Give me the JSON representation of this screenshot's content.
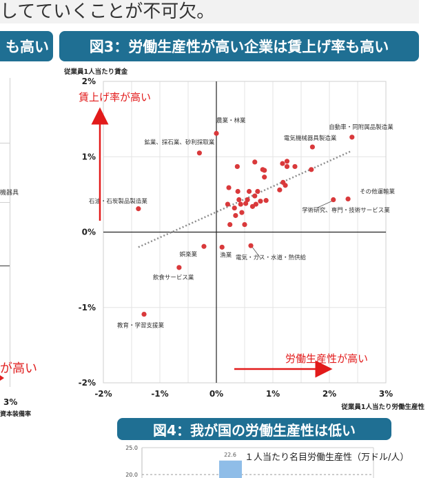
{
  "header": {
    "top_text": "してていくことが不可欠。"
  },
  "left_panel": {
    "banner_fragment": "も高い",
    "label_fragment": "機器具",
    "red_fragment": "が高い",
    "tick_fragment": "3%",
    "axis_fragment": "資本装備率"
  },
  "fig3": {
    "banner": "図3：労働生産性が高い企業は賃上げ率も高い",
    "annotation_y": "賃上げ率が高い",
    "annotation_x": "労働生産性が高い"
  },
  "fig4": {
    "banner": "図4：我が国の労働生産性は低い",
    "legend": "１人当たり名目労働生産性（万ドル/人）",
    "y_ticks": [
      "25.0",
      "20.0"
    ],
    "bar_label": "22.6",
    "bar_value": 22.6,
    "bar_color": "#8fbde8"
  },
  "chart_data": {
    "type": "scatter",
    "ylabel": "従業員1人当たり賃金",
    "xlabel": "従業員1人当たり労働生産性",
    "xlim": [
      -0.02,
      0.03
    ],
    "ylim": [
      -0.02,
      0.02
    ],
    "x_ticks": [
      -0.02,
      -0.01,
      0,
      0.01,
      0.02,
      0.03
    ],
    "x_tick_labels": [
      "-2%",
      "-1%",
      "0%",
      "1%",
      "2%",
      "3%"
    ],
    "y_ticks": [
      -0.02,
      -0.01,
      0,
      0.01,
      0.02
    ],
    "y_tick_labels": [
      "-2%",
      "-1%",
      "0%",
      "1%",
      "2%"
    ],
    "grid": true,
    "point_color": "#d9393b",
    "trend_color": "#8c8c8c",
    "trendline": [
      [
        -0.0138,
        -0.002
      ],
      [
        0.024,
        0.0108
      ]
    ],
    "labeled_points": [
      {
        "label": "農業・林業",
        "x": 0.0,
        "y": 0.0131
      },
      {
        "label": "鉱業、採石業、砂利採取業",
        "x": -0.003,
        "y": 0.0105
      },
      {
        "label": "自動車・同附属品製造業",
        "x": 0.024,
        "y": 0.0126
      },
      {
        "label": "電気機械器具製造業",
        "x": 0.017,
        "y": 0.0113
      },
      {
        "label": "石油・石炭製品製造業",
        "x": -0.0138,
        "y": 0.0031
      },
      {
        "label": "その他運輸業",
        "x": 0.0233,
        "y": 0.0044
      },
      {
        "label": "学術研究、専門・技術サービス業",
        "x": 0.0207,
        "y": 0.0043
      },
      {
        "label": "娯楽業",
        "x": -0.0022,
        "y": -0.0019
      },
      {
        "label": "漁業",
        "x": 0.001,
        "y": -0.002
      },
      {
        "label": "電気・ガス・水道・熱供給",
        "x": 0.0061,
        "y": -0.0018
      },
      {
        "label": "飲食サービス業",
        "x": -0.0066,
        "y": -0.0047
      },
      {
        "label": "教育・学習支援業",
        "x": -0.0128,
        "y": -0.0109
      }
    ],
    "points": [
      {
        "x": 0.0037,
        "y": 0.0087
      },
      {
        "x": 0.0068,
        "y": 0.0093
      },
      {
        "x": 0.0082,
        "y": 0.0083
      },
      {
        "x": 0.0085,
        "y": 0.0082
      },
      {
        "x": 0.0085,
        "y": 0.0073
      },
      {
        "x": 0.0117,
        "y": 0.0091
      },
      {
        "x": 0.0125,
        "y": 0.0094
      },
      {
        "x": 0.0125,
        "y": 0.0087
      },
      {
        "x": 0.0139,
        "y": 0.0087
      },
      {
        "x": 0.0168,
        "y": 0.0083
      },
      {
        "x": 0.0118,
        "y": 0.0066
      },
      {
        "x": 0.0122,
        "y": 0.0062
      },
      {
        "x": 0.0112,
        "y": 0.0056
      },
      {
        "x": 0.0022,
        "y": 0.0059
      },
      {
        "x": 0.0038,
        "y": 0.0054
      },
      {
        "x": 0.0058,
        "y": 0.0054
      },
      {
        "x": 0.0068,
        "y": 0.0048
      },
      {
        "x": 0.0073,
        "y": 0.0054
      },
      {
        "x": 0.0055,
        "y": 0.0043
      },
      {
        "x": 0.004,
        "y": 0.0043
      },
      {
        "x": 0.002,
        "y": 0.0037
      },
      {
        "x": 0.0032,
        "y": 0.0032
      },
      {
        "x": 0.0043,
        "y": 0.0037
      },
      {
        "x": 0.0052,
        "y": 0.0038
      },
      {
        "x": 0.0078,
        "y": 0.0041
      },
      {
        "x": 0.0088,
        "y": 0.0042
      },
      {
        "x": 0.0064,
        "y": 0.0034
      },
      {
        "x": 0.007,
        "y": 0.0037
      },
      {
        "x": 0.0034,
        "y": 0.0022
      },
      {
        "x": 0.0045,
        "y": 0.0026
      },
      {
        "x": 0.0024,
        "y": 0.001
      },
      {
        "x": 0.005,
        "y": 0.001
      }
    ]
  }
}
